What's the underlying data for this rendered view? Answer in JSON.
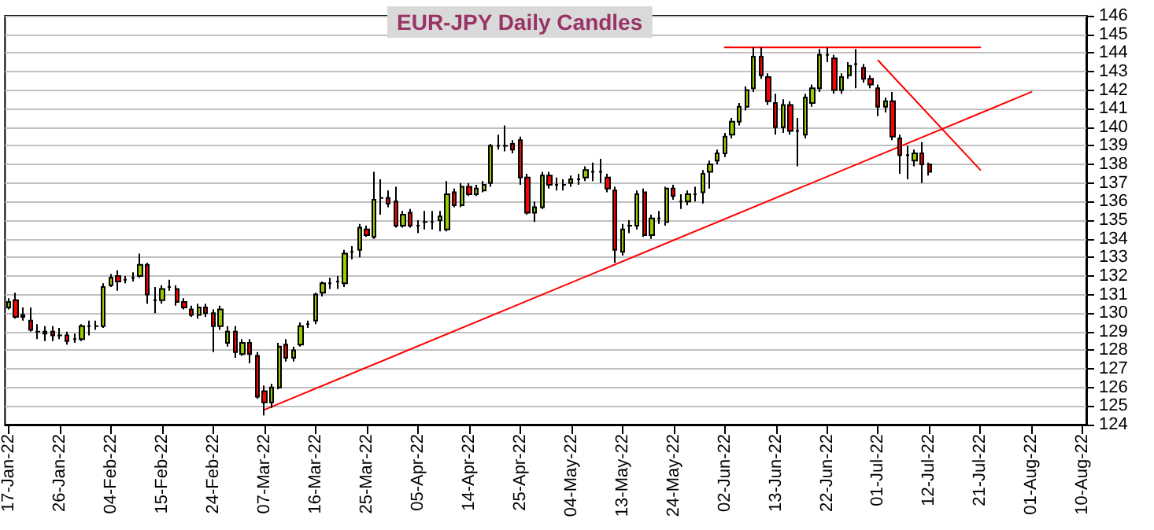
{
  "chart_data": {
    "type": "candlestick",
    "title": "EUR-JPY Daily Candles",
    "categories": [
      "17-Jan-22",
      null,
      null,
      null,
      null,
      null,
      null,
      "26-Jan-22",
      null,
      null,
      null,
      null,
      null,
      null,
      "04-Feb-22",
      null,
      null,
      null,
      null,
      null,
      null,
      "15-Feb-22",
      null,
      null,
      null,
      null,
      null,
      null,
      "24-Feb-22",
      null,
      null,
      null,
      null,
      null,
      null,
      "07-Mar-22",
      null,
      null,
      null,
      null,
      null,
      null,
      "16-Mar-22",
      null,
      null,
      null,
      null,
      null,
      null,
      "25-Mar-22",
      null,
      null,
      null,
      null,
      null,
      null,
      "05-Apr-22",
      null,
      null,
      null,
      null,
      null,
      null,
      "14-Apr-22",
      null,
      null,
      null,
      null,
      null,
      null,
      "25-Apr-22",
      null,
      null,
      null,
      null,
      null,
      null,
      "04-May-22",
      null,
      null,
      null,
      null,
      null,
      null,
      "13-May-22",
      null,
      null,
      null,
      null,
      null,
      null,
      "24-May-22",
      null,
      null,
      null,
      null,
      null,
      null,
      "02-Jun-22",
      null,
      null,
      null,
      null,
      null,
      null,
      "13-Jun-22",
      null,
      null,
      null,
      null,
      null,
      null,
      "22-Jun-22",
      null,
      null,
      null,
      null,
      null,
      null,
      "01-Jul-22",
      null,
      null,
      null,
      null,
      null,
      null,
      "12-Jul-22",
      null,
      null,
      null,
      null,
      null,
      null,
      "21-Jul-22",
      null,
      null,
      null,
      null,
      null,
      null,
      "01-Aug-22",
      null,
      null,
      null,
      null,
      null,
      null,
      "10-Aug-22"
    ],
    "colors": [
      "#99cc00",
      "#ff0000",
      "#ff0000",
      "#ff0000",
      "#000000",
      "#ff0000",
      "#ff0000",
      "#000000",
      "#ff0000",
      "#000000",
      "#99cc00",
      "#000000",
      "#000000",
      "#99cc00",
      "#99cc00",
      "#ff0000",
      "#000000",
      "#000000",
      "#99cc00",
      "#ff0000",
      "#000000",
      "#99cc00",
      "#000000",
      "#ff0000",
      "#ff0000",
      "#ff0000",
      "#99cc00",
      "#ff0000",
      "#ff0000",
      "#99cc00",
      "#99cc00",
      "#ff0000",
      "#99cc00",
      "#ff0000",
      "#ff0000",
      "#ff0000",
      "#99cc00",
      "#99cc00",
      "#ff0000",
      "#99cc00",
      "#99cc00",
      "#000000",
      "#99cc00",
      "#99cc00",
      "#000000",
      "#000000",
      "#99cc00",
      "#000000",
      "#99cc00",
      "#ff0000",
      "#99cc00",
      "#000000",
      "#ff0000",
      "#ff0000",
      "#99cc00",
      "#ff0000",
      "#000000",
      "#000000",
      "#000000",
      "#99cc00",
      "#99cc00",
      "#ff0000",
      "#99cc00",
      "#ff0000",
      "#99cc00",
      "#99cc00",
      "#99cc00",
      "#000000",
      "#000000",
      "#ff0000",
      "#ff0000",
      "#ff0000",
      "#99cc00",
      "#99cc00",
      "#ff0000",
      "#000000",
      "#000000",
      "#99cc00",
      "#000000",
      "#99cc00",
      "#000000",
      "#000000",
      "#ff0000",
      "#ff0000",
      "#99cc00",
      "#000000",
      "#99cc00",
      "#ff0000",
      "#99cc00",
      "#000000",
      "#99cc00",
      "#ff0000",
      "#000000",
      "#99cc00",
      "#000000",
      "#99cc00",
      "#99cc00",
      "#99cc00",
      "#99cc00",
      "#99cc00",
      "#99cc00",
      "#99cc00",
      "#99cc00",
      "#ff0000",
      "#ff0000",
      "#ff0000",
      "#99cc00",
      "#ff0000",
      "#000000",
      "#99cc00",
      "#99cc00",
      "#99cc00",
      "#000000",
      "#ff0000",
      "#99cc00",
      "#99cc00",
      "#000000",
      "#ff0000",
      "#ff0000",
      "#ff0000",
      "#99cc00",
      "#ff0000",
      "#ff0000",
      "#000000",
      "#99cc00",
      "#ff0000",
      "#ff0000",
      null,
      null,
      null,
      null,
      null,
      null,
      null,
      null,
      null,
      null,
      null,
      null,
      null,
      null,
      null,
      null,
      null,
      null,
      null,
      null,
      null
    ],
    "ohlc": [
      [
        130.3,
        130.8,
        130.2,
        130.6
      ],
      [
        130.7,
        131.1,
        129.7,
        129.8
      ],
      [
        129.9,
        130.3,
        129.6,
        129.8
      ],
      [
        129.6,
        130.3,
        129.0,
        129.1
      ],
      [
        129.0,
        129.4,
        128.6,
        129.0
      ],
      [
        129.0,
        129.3,
        128.5,
        128.9
      ],
      [
        129.0,
        129.3,
        128.5,
        128.8
      ],
      [
        128.8,
        129.2,
        128.6,
        128.8
      ],
      [
        128.8,
        129.0,
        128.3,
        128.5
      ],
      [
        128.6,
        128.9,
        128.4,
        128.6
      ],
      [
        128.6,
        129.4,
        128.5,
        129.3
      ],
      [
        129.3,
        129.6,
        128.8,
        129.3
      ],
      [
        129.3,
        129.6,
        129.1,
        129.3
      ],
      [
        129.3,
        131.6,
        129.2,
        131.4
      ],
      [
        131.5,
        132.1,
        131.4,
        131.9
      ],
      [
        132.0,
        132.3,
        131.2,
        131.7
      ],
      [
        131.8,
        132.0,
        131.6,
        131.8
      ],
      [
        131.9,
        132.2,
        131.7,
        131.9
      ],
      [
        132.0,
        133.2,
        131.9,
        132.6
      ],
      [
        132.6,
        132.7,
        130.5,
        131.0
      ],
      [
        130.7,
        131.4,
        130.0,
        130.7
      ],
      [
        130.7,
        131.5,
        130.5,
        131.3
      ],
      [
        131.4,
        131.8,
        131.2,
        131.4
      ],
      [
        131.3,
        131.5,
        130.4,
        130.6
      ],
      [
        130.6,
        130.8,
        130.2,
        130.3
      ],
      [
        130.2,
        130.4,
        129.8,
        129.9
      ],
      [
        129.9,
        130.5,
        129.7,
        130.3
      ],
      [
        130.3,
        130.5,
        129.8,
        130.0
      ],
      [
        130.0,
        130.2,
        127.9,
        129.3
      ],
      [
        129.3,
        130.4,
        129.1,
        130.2
      ],
      [
        128.4,
        129.3,
        128.2,
        129.0
      ],
      [
        129.0,
        129.3,
        127.6,
        127.9
      ],
      [
        127.8,
        128.6,
        127.7,
        128.4
      ],
      [
        128.4,
        128.6,
        127.3,
        127.8
      ],
      [
        127.7,
        127.9,
        125.4,
        125.5
      ],
      [
        125.8,
        126.1,
        124.5,
        125.2
      ],
      [
        125.2,
        126.2,
        124.9,
        126.0
      ],
      [
        126.0,
        128.4,
        125.9,
        128.2
      ],
      [
        128.3,
        128.6,
        127.4,
        127.6
      ],
      [
        127.6,
        128.2,
        127.4,
        128.0
      ],
      [
        128.3,
        129.5,
        128.2,
        129.3
      ],
      [
        129.4,
        129.6,
        129.2,
        129.4
      ],
      [
        129.6,
        131.1,
        129.4,
        131.0
      ],
      [
        131.1,
        131.7,
        130.9,
        131.6
      ],
      [
        131.6,
        131.9,
        131.3,
        131.6
      ],
      [
        131.7,
        132.0,
        131.3,
        131.7
      ],
      [
        131.6,
        133.4,
        131.4,
        133.2
      ],
      [
        133.3,
        133.6,
        132.9,
        133.3
      ],
      [
        133.4,
        134.8,
        133.0,
        134.6
      ],
      [
        134.5,
        134.7,
        134.1,
        134.2
      ],
      [
        134.1,
        137.6,
        134.0,
        136.1
      ],
      [
        136.2,
        137.2,
        135.3,
        136.2
      ],
      [
        136.2,
        136.6,
        135.7,
        135.9
      ],
      [
        136.0,
        136.8,
        134.6,
        134.7
      ],
      [
        134.7,
        135.5,
        134.6,
        135.3
      ],
      [
        135.4,
        135.6,
        134.6,
        134.7
      ],
      [
        134.7,
        135.0,
        134.3,
        134.7
      ],
      [
        134.9,
        135.5,
        134.5,
        134.9
      ],
      [
        134.9,
        135.5,
        134.5,
        134.9
      ],
      [
        135.0,
        135.5,
        134.4,
        135.2
      ],
      [
        134.5,
        137.1,
        134.4,
        136.4
      ],
      [
        136.5,
        136.7,
        135.7,
        135.8
      ],
      [
        135.8,
        137.0,
        135.7,
        136.8
      ],
      [
        136.8,
        137.0,
        136.3,
        136.4
      ],
      [
        136.4,
        136.9,
        136.3,
        136.7
      ],
      [
        136.6,
        137.1,
        136.5,
        136.9
      ],
      [
        137.0,
        139.1,
        136.8,
        139.0
      ],
      [
        139.0,
        139.6,
        138.8,
        139.0
      ],
      [
        139.0,
        140.1,
        138.7,
        139.0
      ],
      [
        139.1,
        139.3,
        138.6,
        138.8
      ],
      [
        139.3,
        139.5,
        136.9,
        137.3
      ],
      [
        137.3,
        137.5,
        135.3,
        135.4
      ],
      [
        135.4,
        136.0,
        134.9,
        135.7
      ],
      [
        135.7,
        137.6,
        135.6,
        137.4
      ],
      [
        137.4,
        137.6,
        136.7,
        136.9
      ],
      [
        136.9,
        137.3,
        136.6,
        136.9
      ],
      [
        136.9,
        137.2,
        136.6,
        136.9
      ],
      [
        137.0,
        137.4,
        136.8,
        137.2
      ],
      [
        137.2,
        137.5,
        136.9,
        137.2
      ],
      [
        137.3,
        137.9,
        137.1,
        137.7
      ],
      [
        137.6,
        138.1,
        137.1,
        137.6
      ],
      [
        137.6,
        138.3,
        137.0,
        137.6
      ],
      [
        137.3,
        137.5,
        136.5,
        136.7
      ],
      [
        136.6,
        136.8,
        132.7,
        133.4
      ],
      [
        133.3,
        134.8,
        133.1,
        134.5
      ],
      [
        134.7,
        135.0,
        134.3,
        134.7
      ],
      [
        134.7,
        136.6,
        134.5,
        136.4
      ],
      [
        136.5,
        136.7,
        134.1,
        134.2
      ],
      [
        134.2,
        135.3,
        134.0,
        135.1
      ],
      [
        135.1,
        135.5,
        134.8,
        135.1
      ],
      [
        134.9,
        136.8,
        134.7,
        136.7
      ],
      [
        136.7,
        136.9,
        136.1,
        136.3
      ],
      [
        136.0,
        136.4,
        135.6,
        136.0
      ],
      [
        136.0,
        136.6,
        135.8,
        136.4
      ],
      [
        136.4,
        136.8,
        136.0,
        136.4
      ],
      [
        136.5,
        137.7,
        135.9,
        137.5
      ],
      [
        137.6,
        138.2,
        136.7,
        138.0
      ],
      [
        138.2,
        138.8,
        138.0,
        138.6
      ],
      [
        138.6,
        139.7,
        138.4,
        139.5
      ],
      [
        139.6,
        140.5,
        139.4,
        140.3
      ],
      [
        140.3,
        141.3,
        140.1,
        141.1
      ],
      [
        141.1,
        142.2,
        140.9,
        142.0
      ],
      [
        142.1,
        144.3,
        141.9,
        143.8
      ],
      [
        143.8,
        144.3,
        142.6,
        142.8
      ],
      [
        142.7,
        142.9,
        141.2,
        141.4
      ],
      [
        141.3,
        141.8,
        139.6,
        140.0
      ],
      [
        140.0,
        141.5,
        139.7,
        141.2
      ],
      [
        141.2,
        141.4,
        139.6,
        139.8
      ],
      [
        139.8,
        140.5,
        137.9,
        139.8
      ],
      [
        139.6,
        141.8,
        139.4,
        141.6
      ],
      [
        141.3,
        142.3,
        141.1,
        142.1
      ],
      [
        142.1,
        144.2,
        141.9,
        143.9
      ],
      [
        143.9,
        144.3,
        143.5,
        143.9
      ],
      [
        143.7,
        143.9,
        141.8,
        142.0
      ],
      [
        142.0,
        142.9,
        141.8,
        142.7
      ],
      [
        142.8,
        143.5,
        142.6,
        143.3
      ],
      [
        143.4,
        144.2,
        142.1,
        143.4
      ],
      [
        143.2,
        143.4,
        142.4,
        142.6
      ],
      [
        142.6,
        142.8,
        142.1,
        142.3
      ],
      [
        142.1,
        142.3,
        140.6,
        141.1
      ],
      [
        141.1,
        141.6,
        140.8,
        141.4
      ],
      [
        141.4,
        141.9,
        139.3,
        139.5
      ],
      [
        139.4,
        139.6,
        137.5,
        138.5
      ],
      [
        138.5,
        139.0,
        137.2,
        138.5
      ],
      [
        138.2,
        138.8,
        137.9,
        138.6
      ],
      [
        138.6,
        139.2,
        137.0,
        138.0
      ],
      [
        138.0,
        138.1,
        137.4,
        137.6
      ],
      null,
      null,
      null,
      null,
      null,
      null,
      null,
      null,
      null,
      null,
      null,
      null,
      null,
      null,
      null,
      null,
      null,
      null,
      null,
      null,
      null
    ],
    "series": [
      {
        "type": "line",
        "color": "#ff0000",
        "x": [
          "07-Mar-22",
          "01-Aug-22"
        ],
        "values": [
          124.8,
          141.9
        ]
      },
      {
        "type": "line",
        "color": "#ff0000",
        "x": [
          "02-Jun-22",
          "21-Jul-22"
        ],
        "values": [
          144.3,
          144.3
        ]
      },
      {
        "type": "line",
        "color": "#ff0000",
        "x": [
          "01-Jul-22",
          "21-Jul-22"
        ],
        "values": [
          143.6,
          137.7
        ]
      }
    ],
    "ylim": [
      124,
      146
    ],
    "yticks": [
      124,
      125,
      126,
      127,
      128,
      129,
      130,
      131,
      132,
      133,
      134,
      135,
      136,
      137,
      138,
      139,
      140,
      141,
      142,
      143,
      144,
      145,
      146
    ],
    "grid": "y",
    "marker": "none",
    "line_style": "solid"
  }
}
